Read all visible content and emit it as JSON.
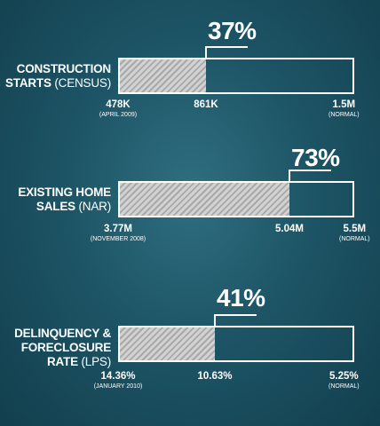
{
  "chart_data": [
    {
      "type": "bar",
      "label_main": "CONSTRUCTION",
      "label_line2": "STARTS",
      "label_sub": "(CENSUS)",
      "percent_label": "37%",
      "start": {
        "value": "478K",
        "note": "(APRIL 2009)"
      },
      "current": {
        "value": "861K"
      },
      "normal": {
        "value": "1.5M",
        "note": "(NORMAL)"
      },
      "fraction": 0.37
    },
    {
      "type": "bar",
      "label_main": "EXISTING HOME",
      "label_line2": "SALES",
      "label_sub": "(NAR)",
      "percent_label": "73%",
      "start": {
        "value": "3.77M",
        "note": "(NOVEMBER 2008)"
      },
      "current": {
        "value": "5.04M"
      },
      "normal": {
        "value": "5.5M",
        "note": "(NORMAL)"
      },
      "fraction": 0.73
    },
    {
      "type": "bar",
      "label_main": "DELINQUENCY &",
      "label_line2": "FORECLOSURE",
      "label_line3": "RATE",
      "label_sub": "(LPS)",
      "percent_label": "41%",
      "start": {
        "value": "14.36%",
        "note": "(JANUARY 2010)"
      },
      "current": {
        "value": "10.63%"
      },
      "normal": {
        "value": "5.25%",
        "note": "(NORMAL)"
      },
      "fraction": 0.41
    }
  ]
}
